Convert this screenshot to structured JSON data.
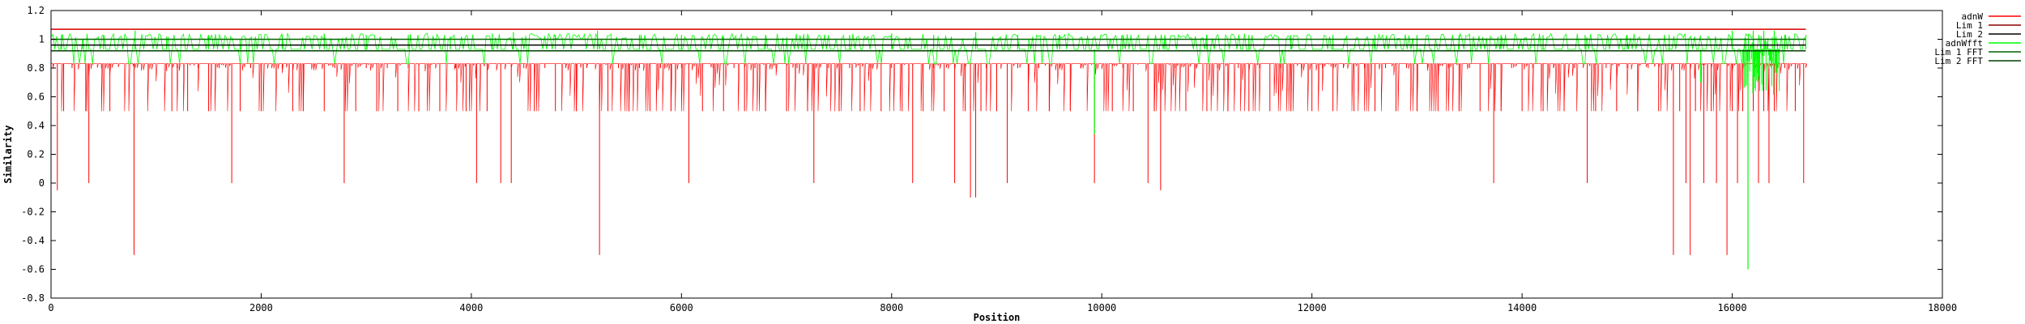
{
  "colors": {
    "adnW": "#ff0000",
    "lim1": "#8b0000",
    "lim2": "#000000",
    "adnWfft": "#00ff00",
    "lim1fft": "#006400",
    "lim2fft": "#004000",
    "background": "#ffffff",
    "frame": "#000000"
  },
  "chart_data": {
    "type": "line",
    "xlabel": "Position",
    "ylabel": "Similarity",
    "xlim": [
      0,
      18000
    ],
    "ylim": [
      -0.8,
      1.2
    ],
    "grid": false,
    "legend_position": "top-right-outside",
    "xticks": [
      "0",
      "2000",
      "4000",
      "6000",
      "8000",
      "10000",
      "12000",
      "14000",
      "16000",
      "18000"
    ],
    "yticks": [
      "-0.8",
      "-0.6",
      "-0.4",
      "-0.2",
      "0",
      "0.2",
      "0.4",
      "0.6",
      "0.8",
      "1",
      "1.2"
    ],
    "legend": [
      {
        "key": "adnW",
        "label": "adnW"
      },
      {
        "key": "lim1",
        "label": "Lim 1"
      },
      {
        "key": "lim2",
        "label": "Lim 2"
      },
      {
        "key": "adnWfft",
        "label": "adnWfft"
      },
      {
        "key": "lim1fft",
        "label": "Lim 1 FFT"
      },
      {
        "key": "lim2fft",
        "label": "Lim 2 FFT"
      }
    ],
    "series": [
      {
        "name": "adnW",
        "x_start": 0,
        "x_end": 16700,
        "baseline": 0.83,
        "high_spikes": [
          [
            20,
            0.8
          ],
          [
            60,
            -0.05
          ],
          [
            120,
            0.5
          ],
          [
            200,
            0.8
          ],
          [
            330,
            0.5
          ],
          [
            360,
            0.0
          ],
          [
            480,
            0.8
          ],
          [
            560,
            0.5
          ],
          [
            640,
            0.83
          ],
          [
            790,
            -0.5
          ],
          [
            1100,
            0.78
          ],
          [
            1150,
            0.5
          ],
          [
            1200,
            0.8
          ],
          [
            1300,
            0.5
          ],
          [
            1400,
            0.8
          ],
          [
            1500,
            0.5
          ],
          [
            1600,
            0.8
          ],
          [
            1720,
            0.0
          ],
          [
            1800,
            0.5
          ],
          [
            1900,
            0.8
          ],
          [
            2000,
            0.5
          ],
          [
            2200,
            0.8
          ],
          [
            2300,
            0.5
          ],
          [
            2400,
            0.5
          ],
          [
            2500,
            0.8
          ],
          [
            2600,
            0.5
          ],
          [
            2700,
            0.8
          ],
          [
            2790,
            0.0
          ],
          [
            2900,
            0.5
          ],
          [
            3000,
            0.8
          ],
          [
            3100,
            0.5
          ],
          [
            3200,
            0.8
          ],
          [
            3300,
            0.5
          ],
          [
            3400,
            0.8
          ],
          [
            3500,
            0.5
          ],
          [
            3600,
            0.8
          ],
          [
            3700,
            0.5
          ],
          [
            3850,
            0.8
          ],
          [
            3950,
            0.5
          ],
          [
            4050,
            0.0
          ],
          [
            4150,
            0.5
          ],
          [
            4280,
            0.0
          ],
          [
            4380,
            0.0
          ],
          [
            4500,
            0.8
          ],
          [
            4600,
            0.5
          ],
          [
            4700,
            0.8
          ],
          [
            4800,
            0.5
          ],
          [
            4900,
            0.8
          ],
          [
            5000,
            0.5
          ],
          [
            5100,
            0.8
          ],
          [
            5220,
            -0.5
          ],
          [
            5300,
            0.5
          ],
          [
            5400,
            0.8
          ],
          [
            5500,
            0.5
          ],
          [
            5600,
            0.8
          ],
          [
            5700,
            0.5
          ],
          [
            5800,
            0.8
          ],
          [
            5900,
            0.5
          ],
          [
            6000,
            0.8
          ],
          [
            6070,
            0.0
          ],
          [
            6200,
            0.5
          ],
          [
            6300,
            0.8
          ],
          [
            6400,
            0.5
          ],
          [
            6500,
            0.8
          ],
          [
            6600,
            0.5
          ],
          [
            6700,
            0.8
          ],
          [
            6800,
            0.5
          ],
          [
            6900,
            0.8
          ],
          [
            7000,
            0.5
          ],
          [
            7100,
            0.8
          ],
          [
            7200,
            0.5
          ],
          [
            7260,
            0.0
          ],
          [
            7400,
            0.8
          ],
          [
            7500,
            0.5
          ],
          [
            7600,
            0.8
          ],
          [
            7700,
            0.5
          ],
          [
            7800,
            0.8
          ],
          [
            7900,
            0.5
          ],
          [
            8000,
            0.8
          ],
          [
            8100,
            0.5
          ],
          [
            8200,
            0.0
          ],
          [
            8300,
            0.5
          ],
          [
            8400,
            0.8
          ],
          [
            8500,
            0.5
          ],
          [
            8600,
            0.0
          ],
          [
            8700,
            0.5
          ],
          [
            8750,
            -0.1
          ],
          [
            8800,
            -0.1
          ],
          [
            8850,
            0.5
          ],
          [
            8900,
            0.8
          ],
          [
            9000,
            0.5
          ],
          [
            9100,
            0.0
          ],
          [
            9200,
            0.8
          ],
          [
            9300,
            0.5
          ],
          [
            9400,
            0.8
          ],
          [
            9500,
            0.5
          ],
          [
            9600,
            0.8
          ],
          [
            9700,
            0.5
          ],
          [
            9800,
            0.8
          ],
          [
            9930,
            0.0
          ],
          [
            10100,
            0.5
          ],
          [
            10200,
            0.8
          ],
          [
            10300,
            0.5
          ],
          [
            10440,
            0.0
          ],
          [
            10500,
            0.5
          ],
          [
            10560,
            -0.05
          ],
          [
            10700,
            0.8
          ],
          [
            10800,
            0.5
          ],
          [
            10900,
            0.8
          ],
          [
            11000,
            0.5
          ],
          [
            11100,
            0.8
          ],
          [
            11200,
            0.5
          ],
          [
            11300,
            0.8
          ],
          [
            11400,
            0.5
          ],
          [
            11500,
            0.8
          ],
          [
            11600,
            0.5
          ],
          [
            11700,
            0.8
          ],
          [
            11800,
            0.5
          ],
          [
            11900,
            0.8
          ],
          [
            12000,
            0.5
          ],
          [
            12100,
            0.8
          ],
          [
            12200,
            0.5
          ],
          [
            12300,
            0.8
          ],
          [
            12400,
            0.5
          ],
          [
            12500,
            0.8
          ],
          [
            12600,
            0.5
          ],
          [
            12700,
            0.8
          ],
          [
            12800,
            0.5
          ],
          [
            12900,
            0.8
          ],
          [
            13000,
            0.5
          ],
          [
            13100,
            0.8
          ],
          [
            13200,
            0.5
          ],
          [
            13300,
            0.8
          ],
          [
            13400,
            0.5
          ],
          [
            13500,
            0.8
          ],
          [
            13600,
            0.5
          ],
          [
            13730,
            0.0
          ],
          [
            13800,
            0.5
          ],
          [
            13900,
            0.8
          ],
          [
            14000,
            0.5
          ],
          [
            14100,
            0.8
          ],
          [
            14200,
            0.5
          ],
          [
            14300,
            0.8
          ],
          [
            14400,
            0.5
          ],
          [
            14500,
            0.8
          ],
          [
            14620,
            0.0
          ],
          [
            14700,
            0.5
          ],
          [
            14800,
            0.8
          ],
          [
            14900,
            0.5
          ],
          [
            15000,
            0.8
          ],
          [
            15100,
            0.5
          ],
          [
            15200,
            0.8
          ],
          [
            15300,
            0.5
          ],
          [
            15440,
            -0.5
          ],
          [
            15500,
            0.5
          ],
          [
            15560,
            0.0
          ],
          [
            15600,
            -0.5
          ],
          [
            15650,
            0.5
          ],
          [
            15730,
            0.0
          ],
          [
            15800,
            0.5
          ],
          [
            15850,
            0.0
          ],
          [
            15950,
            -0.5
          ],
          [
            16000,
            0.5
          ],
          [
            16050,
            0.0
          ],
          [
            16100,
            0.5
          ],
          [
            16150,
            0.0
          ],
          [
            16200,
            0.5
          ],
          [
            16250,
            0.0
          ],
          [
            16300,
            0.5
          ],
          [
            16350,
            0.0
          ],
          [
            16400,
            0.5
          ],
          [
            16500,
            0.8
          ],
          [
            16600,
            0.5
          ],
          [
            16680,
            0.0
          ]
        ]
      },
      {
        "name": "Lim 1",
        "y": 1.07,
        "x_start": 0,
        "x_end": 16700
      },
      {
        "name": "Lim 2",
        "y": 0.96,
        "x_start": 0,
        "x_end": 16700
      },
      {
        "name": "adnWfft",
        "x_start": 0,
        "x_end": 16700,
        "baseline": 0.93,
        "spikes": [
          [
            100,
            1.03
          ],
          [
            300,
            1.0
          ],
          [
            500,
            1.03
          ],
          [
            800,
            1.06
          ],
          [
            1100,
            1.02
          ],
          [
            1500,
            1.03
          ],
          [
            1800,
            1.0
          ],
          [
            2200,
            1.03
          ],
          [
            2600,
            1.04
          ],
          [
            3000,
            1.03
          ],
          [
            3400,
            1.03
          ],
          [
            3800,
            1.02
          ],
          [
            4200,
            1.04
          ],
          [
            4400,
            1.05
          ],
          [
            4800,
            1.03
          ],
          [
            5200,
            1.06
          ],
          [
            5600,
            1.03
          ],
          [
            6000,
            1.03
          ],
          [
            6400,
            1.02
          ],
          [
            6800,
            1.03
          ],
          [
            7200,
            1.02
          ],
          [
            7600,
            1.03
          ],
          [
            8000,
            1.04
          ],
          [
            8400,
            1.03
          ],
          [
            8800,
            1.05
          ],
          [
            9200,
            1.03
          ],
          [
            9600,
            1.03
          ],
          [
            9930,
            0.34
          ],
          [
            10200,
            1.03
          ],
          [
            10600,
            1.03
          ],
          [
            11000,
            1.03
          ],
          [
            11400,
            1.03
          ],
          [
            11800,
            1.03
          ],
          [
            12200,
            1.03
          ],
          [
            12600,
            1.03
          ],
          [
            13000,
            1.03
          ],
          [
            13400,
            1.03
          ],
          [
            13800,
            1.03
          ],
          [
            14200,
            1.03
          ],
          [
            14600,
            1.03
          ],
          [
            15000,
            1.03
          ],
          [
            15400,
            1.03
          ],
          [
            15700,
            0.7
          ],
          [
            16000,
            1.06
          ],
          [
            16150,
            -0.6
          ],
          [
            16200,
            1.06
          ],
          [
            16300,
            1.06
          ],
          [
            16400,
            1.06
          ],
          [
            16500,
            1.03
          ],
          [
            16700,
            1.03
          ]
        ]
      },
      {
        "name": "Lim 1 FFT",
        "y": 1.0,
        "x_start": 0,
        "x_end": 16700
      },
      {
        "name": "Lim 2 FFT",
        "y": 0.92,
        "x_start": 0,
        "x_end": 16700
      }
    ]
  }
}
